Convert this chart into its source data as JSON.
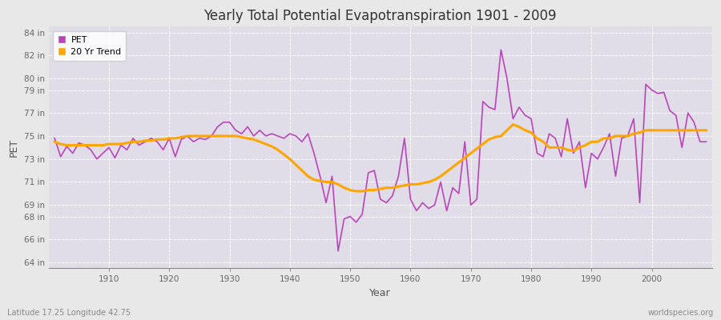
{
  "title": "Yearly Total Potential Evapotranspiration 1901 - 2009",
  "xlabel": "Year",
  "ylabel": "PET",
  "footer_left": "Latitude 17.25 Longitude 42.75",
  "footer_right": "worldspecies.org",
  "pet_color": "#bb44bb",
  "trend_color": "#FFA500",
  "fig_bg_color": "#e8e8e8",
  "plot_bg_color": "#e0dde8",
  "legend_labels": [
    "PET",
    "20 Yr Trend"
  ],
  "years": [
    1901,
    1902,
    1903,
    1904,
    1905,
    1906,
    1907,
    1908,
    1909,
    1910,
    1911,
    1912,
    1913,
    1914,
    1915,
    1916,
    1917,
    1918,
    1919,
    1920,
    1921,
    1922,
    1923,
    1924,
    1925,
    1926,
    1927,
    1928,
    1929,
    1930,
    1931,
    1932,
    1933,
    1934,
    1935,
    1936,
    1937,
    1938,
    1939,
    1940,
    1941,
    1942,
    1943,
    1944,
    1945,
    1946,
    1947,
    1948,
    1949,
    1950,
    1951,
    1952,
    1953,
    1954,
    1955,
    1956,
    1957,
    1958,
    1959,
    1960,
    1961,
    1962,
    1963,
    1964,
    1965,
    1966,
    1967,
    1968,
    1969,
    1970,
    1971,
    1972,
    1973,
    1974,
    1975,
    1976,
    1977,
    1978,
    1979,
    1980,
    1981,
    1982,
    1983,
    1984,
    1985,
    1986,
    1987,
    1988,
    1989,
    1990,
    1991,
    1992,
    1993,
    1994,
    1995,
    1996,
    1997,
    1998,
    1999,
    2000,
    2001,
    2002,
    2003,
    2004,
    2005,
    2006,
    2007,
    2008,
    2009
  ],
  "pet_values": [
    74.8,
    73.2,
    74.1,
    73.5,
    74.4,
    74.2,
    73.8,
    73.0,
    73.5,
    74.0,
    73.1,
    74.2,
    73.8,
    74.8,
    74.2,
    74.5,
    74.8,
    74.5,
    73.8,
    74.8,
    73.2,
    74.7,
    75.0,
    74.5,
    74.8,
    74.7,
    75.0,
    75.8,
    76.2,
    76.2,
    75.5,
    75.2,
    75.8,
    75.0,
    75.5,
    75.0,
    75.2,
    75.0,
    74.8,
    75.2,
    75.0,
    74.5,
    75.2,
    73.5,
    71.5,
    69.2,
    71.5,
    65.0,
    67.8,
    68.0,
    67.5,
    68.2,
    71.8,
    72.0,
    69.5,
    69.2,
    69.8,
    71.5,
    74.8,
    69.5,
    68.5,
    69.2,
    68.7,
    69.0,
    71.0,
    68.5,
    70.5,
    70.0,
    74.5,
    69.0,
    69.5,
    78.0,
    77.5,
    77.3,
    82.5,
    80.0,
    76.5,
    77.5,
    76.8,
    76.5,
    73.5,
    73.2,
    75.2,
    74.8,
    73.2,
    76.5,
    73.5,
    74.5,
    70.5,
    73.5,
    73.0,
    74.0,
    75.2,
    71.5,
    74.8,
    75.0,
    76.5,
    69.2,
    79.5,
    79.0,
    78.7,
    78.8,
    77.2,
    76.8,
    74.0,
    77.0,
    76.2,
    74.5,
    74.5
  ],
  "trend_values": [
    74.5,
    74.3,
    74.2,
    74.2,
    74.2,
    74.2,
    74.2,
    74.2,
    74.2,
    74.3,
    74.3,
    74.3,
    74.4,
    74.5,
    74.5,
    74.6,
    74.6,
    74.7,
    74.7,
    74.8,
    74.8,
    74.9,
    75.0,
    75.0,
    75.0,
    75.0,
    75.0,
    75.0,
    75.0,
    75.0,
    75.0,
    74.9,
    74.8,
    74.7,
    74.5,
    74.3,
    74.1,
    73.8,
    73.4,
    73.0,
    72.5,
    72.0,
    71.5,
    71.2,
    71.1,
    71.0,
    71.0,
    70.8,
    70.5,
    70.3,
    70.2,
    70.2,
    70.3,
    70.3,
    70.4,
    70.5,
    70.5,
    70.6,
    70.7,
    70.8,
    70.8,
    70.9,
    71.0,
    71.2,
    71.5,
    71.9,
    72.3,
    72.7,
    73.1,
    73.5,
    73.9,
    74.3,
    74.7,
    74.9,
    75.0,
    75.5,
    76.0,
    75.8,
    75.5,
    75.3,
    74.8,
    74.5,
    74.0,
    74.0,
    74.0,
    73.8,
    73.7,
    74.0,
    74.2,
    74.5,
    74.5,
    74.8,
    74.8,
    75.0,
    75.0,
    75.0,
    75.2,
    75.3,
    75.5,
    75.5,
    75.5,
    75.5,
    75.5,
    75.5,
    75.5,
    75.5,
    75.5,
    75.5,
    75.5
  ],
  "ylim": [
    63.5,
    84.5
  ],
  "yticks": [
    64,
    66,
    68,
    69,
    71,
    73,
    75,
    77,
    79,
    80,
    82,
    84
  ],
  "ytick_labels": [
    "64 in",
    "66 in",
    "68 in",
    "69 in",
    "71 in",
    "73 in",
    "75 in",
    "77 in",
    "79 in",
    "80 in",
    "82 in",
    "84 in"
  ],
  "xlim": [
    1900,
    2010
  ],
  "xticks": [
    1910,
    1920,
    1930,
    1940,
    1950,
    1960,
    1970,
    1980,
    1990,
    2000
  ]
}
